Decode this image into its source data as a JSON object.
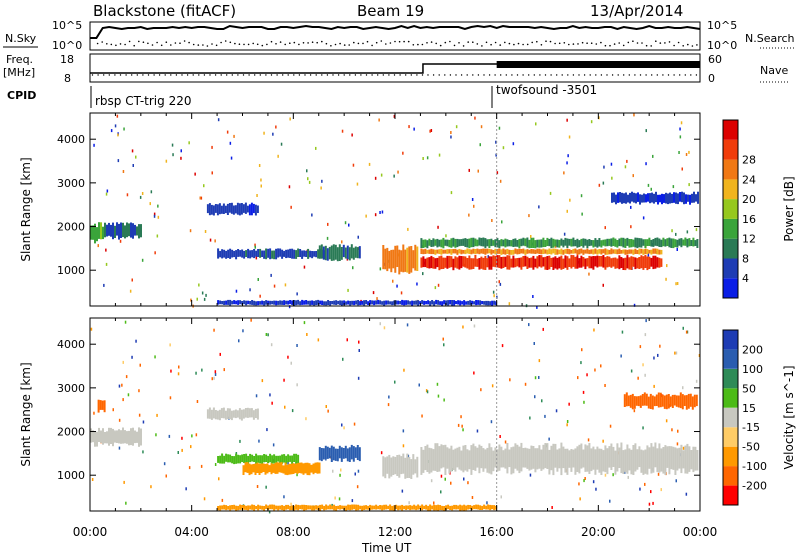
{
  "header": {
    "station": "Blackstone (fitACF)",
    "beam": "Beam 19",
    "date": "13/Apr/2014"
  },
  "strips": {
    "nsky_label": "N.Sky",
    "nsearch_label": "N.Search",
    "nsky_ticks": [
      "10^5",
      "10^0"
    ],
    "nsearch_ticks": [
      "10^5",
      "10^0"
    ],
    "freq_label_1": "Freq.",
    "freq_label_2": "[MHz]",
    "freq_ticks": [
      "18",
      "8"
    ],
    "nave_label": "Nave",
    "nave_ticks": [
      "60",
      "0"
    ],
    "cpid_label": "CPID",
    "cpid_segments": [
      {
        "label": "rbsp CT-trig 220",
        "start_hour": 0
      },
      {
        "label": "twofsound -3501",
        "start_hour": 16
      }
    ]
  },
  "x_axis": {
    "label": "Time UT",
    "ticks": [
      "00:00",
      "04:00",
      "08:00",
      "12:00",
      "16:00",
      "20:00",
      "00:00"
    ],
    "range_hours": [
      0,
      24
    ]
  },
  "colors": {
    "power": [
      "#0a1ee6",
      "#1e3cb4",
      "#2a7a55",
      "#3aa43a",
      "#96c81e",
      "#f0b41e",
      "#f07814",
      "#f03c0a",
      "#dc0000"
    ],
    "velocity": [
      "#ff0000",
      "#ff6600",
      "#ff9900",
      "#ffcc66",
      "#c8c8c0",
      "#4cbb17",
      "#2e8b57",
      "#2a5db0",
      "#1e3cb4"
    ]
  },
  "chart_data": [
    {
      "type": "heatmap",
      "title": "Power",
      "ylabel": "Slant Range [km]",
      "xlabel": "Time UT",
      "xlim_hours": [
        0,
        24
      ],
      "ylim": [
        180,
        4600
      ],
      "yticks": [
        1000,
        2000,
        3000,
        4000
      ],
      "colorbar": {
        "label": "Power [dB]",
        "ticks": [
          "4",
          "8",
          "12",
          "16",
          "20",
          "24",
          "28"
        ],
        "range": [
          0,
          32
        ]
      },
      "echo_regions": [
        {
          "t0": 0.0,
          "t1": 0.55,
          "r0": 1600,
          "r1": 2100,
          "value": 14
        },
        {
          "t0": 0.55,
          "t1": 2.0,
          "r0": 1700,
          "r1": 2100,
          "value": 7
        },
        {
          "t0": 4.6,
          "t1": 6.6,
          "r0": 2250,
          "r1": 2550,
          "value": 5
        },
        {
          "t0": 5.0,
          "t1": 9.2,
          "r0": 1250,
          "r1": 1500,
          "value": 6
        },
        {
          "t0": 9.0,
          "t1": 10.6,
          "r0": 1200,
          "r1": 1600,
          "value": 8
        },
        {
          "t0": 11.5,
          "t1": 12.9,
          "r0": 900,
          "r1": 1600,
          "value": 22
        },
        {
          "t0": 13.0,
          "t1": 22.5,
          "r0": 1000,
          "r1": 1350,
          "value": 28
        },
        {
          "t0": 13.0,
          "t1": 22.5,
          "r0": 1350,
          "r1": 1500,
          "value": 22
        },
        {
          "t0": 13.0,
          "t1": 23.9,
          "r0": 1500,
          "r1": 1750,
          "value": 10
        },
        {
          "t0": 20.5,
          "t1": 23.9,
          "r0": 2500,
          "r1": 2800,
          "value": 4
        },
        {
          "t0": 5.0,
          "t1": 16.0,
          "r0": 190,
          "r1": 320,
          "value": 4
        }
      ]
    },
    {
      "type": "heatmap",
      "title": "Velocity",
      "ylabel": "Slant Range [km]",
      "xlabel": "Time UT",
      "xlim_hours": [
        0,
        24
      ],
      "ylim": [
        180,
        4600
      ],
      "yticks": [
        1000,
        2000,
        3000,
        4000
      ],
      "colorbar": {
        "label": "Velocity [m s^-1]",
        "ticks": [
          "200",
          "100",
          "50",
          "15",
          "-15",
          "-50",
          "-100",
          "-200"
        ],
        "range": [
          -250,
          250
        ]
      },
      "echo_regions": [
        {
          "t0": 0.0,
          "t1": 2.0,
          "r0": 1650,
          "r1": 2100,
          "value": 0
        },
        {
          "t0": 0.3,
          "t1": 0.6,
          "r0": 2400,
          "r1": 2800,
          "value": -180
        },
        {
          "t0": 4.6,
          "t1": 6.6,
          "r0": 2250,
          "r1": 2550,
          "value": 0
        },
        {
          "t0": 5.0,
          "t1": 8.2,
          "r0": 1250,
          "r1": 1500,
          "value": 30
        },
        {
          "t0": 6.0,
          "t1": 9.0,
          "r0": 1000,
          "r1": 1300,
          "value": -60
        },
        {
          "t0": 9.0,
          "t1": 10.6,
          "r0": 1300,
          "r1": 1700,
          "value": 130
        },
        {
          "t0": 11.5,
          "t1": 12.9,
          "r0": 900,
          "r1": 1500,
          "value": 0
        },
        {
          "t0": 13.0,
          "t1": 23.9,
          "r0": 1000,
          "r1": 1750,
          "value": 0
        },
        {
          "t0": 21.0,
          "t1": 23.9,
          "r0": 2500,
          "r1": 2900,
          "value": -120
        },
        {
          "t0": 5.0,
          "t1": 16.0,
          "r0": 190,
          "r1": 330,
          "value": -60
        }
      ]
    }
  ]
}
